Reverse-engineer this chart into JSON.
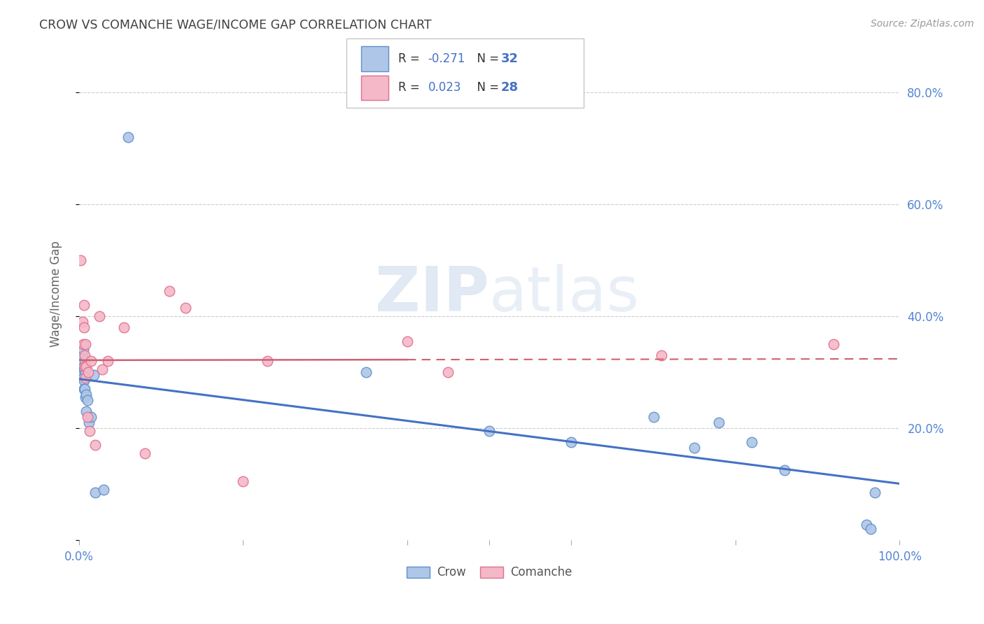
{
  "title": "CROW VS COMANCHE WAGE/INCOME GAP CORRELATION CHART",
  "source": "Source: ZipAtlas.com",
  "ylabel": "Wage/Income Gap",
  "watermark_zip": "ZIP",
  "watermark_atlas": "atlas",
  "crow_R": -0.271,
  "crow_N": 32,
  "comanche_R": 0.023,
  "comanche_N": 28,
  "crow_color": "#aec6e8",
  "comanche_color": "#f4b8c8",
  "crow_edge_color": "#6090c8",
  "comanche_edge_color": "#e07090",
  "crow_line_color": "#4472C4",
  "comanche_line_color": "#d06070",
  "background_color": "#ffffff",
  "grid_color": "#cccccc",
  "title_color": "#404040",
  "axis_label_color": "#5585d5",
  "legend_color": "#4472C4",
  "crow_x": [
    0.004,
    0.004,
    0.005,
    0.005,
    0.005,
    0.006,
    0.006,
    0.006,
    0.007,
    0.007,
    0.008,
    0.008,
    0.009,
    0.009,
    0.01,
    0.012,
    0.015,
    0.018,
    0.02,
    0.03,
    0.06,
    0.35,
    0.5,
    0.6,
    0.7,
    0.75,
    0.78,
    0.82,
    0.86,
    0.96,
    0.965,
    0.97
  ],
  "crow_y": [
    0.33,
    0.295,
    0.34,
    0.31,
    0.29,
    0.305,
    0.285,
    0.27,
    0.32,
    0.27,
    0.3,
    0.255,
    0.26,
    0.23,
    0.25,
    0.21,
    0.22,
    0.295,
    0.085,
    0.09,
    0.72,
    0.3,
    0.195,
    0.175,
    0.22,
    0.165,
    0.21,
    0.175,
    0.125,
    0.028,
    0.02,
    0.085
  ],
  "comanche_x": [
    0.002,
    0.004,
    0.005,
    0.006,
    0.006,
    0.007,
    0.007,
    0.008,
    0.008,
    0.009,
    0.01,
    0.011,
    0.013,
    0.015,
    0.02,
    0.025,
    0.028,
    0.035,
    0.055,
    0.08,
    0.11,
    0.13,
    0.2,
    0.23,
    0.4,
    0.45,
    0.71,
    0.92
  ],
  "comanche_y": [
    0.5,
    0.39,
    0.35,
    0.42,
    0.38,
    0.33,
    0.31,
    0.35,
    0.29,
    0.31,
    0.22,
    0.3,
    0.195,
    0.32,
    0.17,
    0.4,
    0.305,
    0.32,
    0.38,
    0.155,
    0.445,
    0.415,
    0.105,
    0.32,
    0.355,
    0.3,
    0.33,
    0.35
  ],
  "xlim": [
    0.0,
    1.0
  ],
  "ylim": [
    0.0,
    0.88
  ],
  "right_yticks": [
    0.0,
    0.2,
    0.4,
    0.6,
    0.8
  ],
  "right_ylabels": [
    "",
    "20.0%",
    "40.0%",
    "60.0%",
    "80.0%"
  ]
}
